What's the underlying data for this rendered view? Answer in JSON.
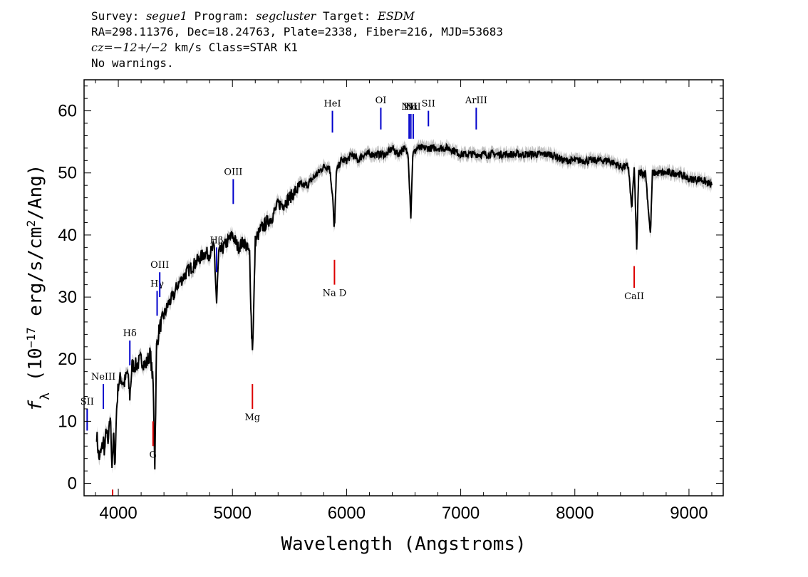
{
  "header": {
    "line1": {
      "survey_label": "Survey: ",
      "survey": "segue1",
      "program_label": " Program: ",
      "program": "segcluster",
      "target_label": " Target: ",
      "target": "ESDM"
    },
    "line2": "RA=298.11376, Dec=18.24763, Plate=2338, Fiber=216, MJD=53683",
    "line3": {
      "cz": "cz=−12+/−2",
      "rest": " km/s Class=STAR K1"
    },
    "line4": "No warnings."
  },
  "chart_data": {
    "type": "line",
    "xlabel": "Wavelength (Angstroms)",
    "ylabel": "f_λ (10^-17 erg/s/cm^2/Ang)",
    "xlim": [
      3700,
      9300
    ],
    "ylim": [
      -2,
      65
    ],
    "x_ticks": [
      4000,
      5000,
      6000,
      7000,
      8000,
      9000
    ],
    "y_ticks": [
      0,
      10,
      20,
      30,
      40,
      50,
      60
    ],
    "colors": {
      "spectrum": "#000000",
      "error_band": "#b0b0b0",
      "emission": "#0000cc",
      "absorption": "#dd0000"
    },
    "series": [
      {
        "values": [
          [
            3810,
            8
          ],
          [
            3830,
            4
          ],
          [
            3850,
            5
          ],
          [
            3870,
            7
          ],
          [
            3880,
            5
          ],
          [
            3895,
            9
          ],
          [
            3910,
            6
          ],
          [
            3930,
            11
          ],
          [
            3945,
            3
          ],
          [
            3960,
            8
          ],
          [
            3968,
            2
          ],
          [
            3985,
            12
          ],
          [
            4000,
            16
          ],
          [
            4020,
            17
          ],
          [
            4050,
            16
          ],
          [
            4080,
            18
          ],
          [
            4101,
            14
          ],
          [
            4120,
            19
          ],
          [
            4160,
            19
          ],
          [
            4200,
            20
          ],
          [
            4240,
            19
          ],
          [
            4280,
            21
          ],
          [
            4305,
            16
          ],
          [
            4320,
            3
          ],
          [
            4335,
            22
          ],
          [
            4360,
            25
          ],
          [
            4400,
            27
          ],
          [
            4440,
            29
          ],
          [
            4480,
            30
          ],
          [
            4520,
            32
          ],
          [
            4560,
            33
          ],
          [
            4600,
            34
          ],
          [
            4650,
            35
          ],
          [
            4700,
            36
          ],
          [
            4750,
            37
          ],
          [
            4800,
            37
          ],
          [
            4840,
            38
          ],
          [
            4861,
            29
          ],
          [
            4880,
            37
          ],
          [
            4920,
            38
          ],
          [
            4960,
            39
          ],
          [
            5000,
            40
          ],
          [
            5050,
            38
          ],
          [
            5100,
            39
          ],
          [
            5150,
            37
          ],
          [
            5168,
            24
          ],
          [
            5175,
            22
          ],
          [
            5184,
            26
          ],
          [
            5200,
            39
          ],
          [
            5250,
            41
          ],
          [
            5300,
            42
          ],
          [
            5350,
            43
          ],
          [
            5400,
            45
          ],
          [
            5450,
            45
          ],
          [
            5500,
            46
          ],
          [
            5550,
            47
          ],
          [
            5600,
            48
          ],
          [
            5650,
            48
          ],
          [
            5700,
            49
          ],
          [
            5750,
            50
          ],
          [
            5800,
            51
          ],
          [
            5850,
            51
          ],
          [
            5880,
            46
          ],
          [
            5890,
            41
          ],
          [
            5896,
            42
          ],
          [
            5910,
            50
          ],
          [
            5950,
            52
          ],
          [
            6000,
            52
          ],
          [
            6050,
            53
          ],
          [
            6100,
            52
          ],
          [
            6150,
            53
          ],
          [
            6200,
            53
          ],
          [
            6250,
            53
          ],
          [
            6300,
            53
          ],
          [
            6350,
            53
          ],
          [
            6400,
            54
          ],
          [
            6450,
            53
          ],
          [
            6500,
            54
          ],
          [
            6540,
            53
          ],
          [
            6563,
            43
          ],
          [
            6580,
            53
          ],
          [
            6620,
            54
          ],
          [
            6700,
            54
          ],
          [
            6800,
            54
          ],
          [
            6900,
            54
          ],
          [
            7000,
            53
          ],
          [
            7100,
            53
          ],
          [
            7200,
            53
          ],
          [
            7300,
            53
          ],
          [
            7400,
            53
          ],
          [
            7500,
            53
          ],
          [
            7600,
            53
          ],
          [
            7700,
            53
          ],
          [
            7800,
            53
          ],
          [
            7900,
            52
          ],
          [
            8000,
            52
          ],
          [
            8100,
            52
          ],
          [
            8200,
            52
          ],
          [
            8300,
            52
          ],
          [
            8400,
            51
          ],
          [
            8470,
            51
          ],
          [
            8498,
            44
          ],
          [
            8520,
            51
          ],
          [
            8542,
            38
          ],
          [
            8560,
            50
          ],
          [
            8620,
            50
          ],
          [
            8662,
            40
          ],
          [
            8680,
            50
          ],
          [
            8800,
            50
          ],
          [
            8900,
            50
          ],
          [
            9000,
            49
          ],
          [
            9100,
            49
          ],
          [
            9200,
            48
          ]
        ]
      }
    ],
    "emission_lines": [
      {
        "label": "SII",
        "x": 3727
      },
      {
        "label": "NeIII",
        "x": 3869
      },
      {
        "label": "Hδ",
        "x": 4101
      },
      {
        "label": "Hγ",
        "x": 4340
      },
      {
        "label": "OIII",
        "x": 4363
      },
      {
        "label": "Hβ",
        "x": 4861
      },
      {
        "label": "OIII",
        "x": 5007
      },
      {
        "label": "HeI",
        "x": 5876
      },
      {
        "label": "OI",
        "x": 6300
      },
      {
        "label": "NII",
        "x": 6548
      },
      {
        "label": "Hα",
        "x": 6563
      },
      {
        "label": "NII",
        "x": 6584
      },
      {
        "label": "SII",
        "x": 6717
      },
      {
        "label": "ArIII",
        "x": 7136
      }
    ],
    "absorption_lines": [
      {
        "label": "G",
        "x": 4304
      },
      {
        "label": "Mg",
        "x": 5175
      },
      {
        "label": "Na D",
        "x": 5894
      },
      {
        "label": "CaII",
        "x": 8520
      },
      {
        "label": "",
        "x": 3950
      }
    ]
  }
}
